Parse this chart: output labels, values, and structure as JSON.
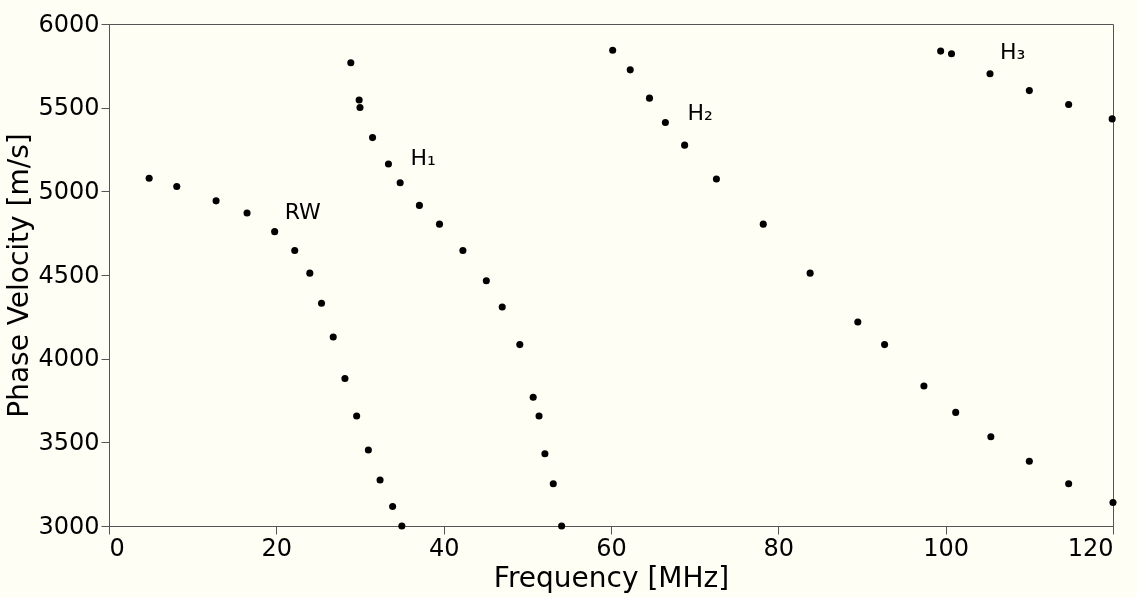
{
  "chart_data": {
    "type": "scatter",
    "xlabel": "Frequency [MHz]",
    "ylabel": "Phase Velocity [m/s]",
    "xlim": [
      0,
      120
    ],
    "ylim": [
      3000,
      6000
    ],
    "xticks": [
      0,
      20,
      40,
      60,
      80,
      100,
      120
    ],
    "yticks": [
      3000,
      3500,
      4000,
      4500,
      5000,
      5500,
      6000
    ],
    "grid": false,
    "marker": "circle",
    "series": [
      {
        "name": "RW",
        "color": "#000000",
        "x": [
          4.8,
          8.1,
          12.8,
          16.5,
          19.8,
          22.2,
          24.0,
          25.4,
          26.8,
          28.2,
          29.6,
          31.0,
          32.4,
          33.9,
          35.0
        ],
        "values": [
          5078,
          5029,
          4943,
          4871,
          4759,
          4646,
          4511,
          4331,
          4129,
          3882,
          3657,
          3454,
          3275,
          3117,
          3000
        ]
      },
      {
        "name": "H₁",
        "color": "#000000",
        "x": [
          28.9,
          29.9,
          30.0,
          31.5,
          33.4,
          34.8,
          37.1,
          39.5,
          42.3,
          45.1,
          47.0,
          49.1,
          50.7,
          51.4,
          52.1,
          53.1,
          54.1
        ],
        "values": [
          5768,
          5546,
          5501,
          5321,
          5163,
          5051,
          4916,
          4804,
          4646,
          4466,
          4309,
          4084,
          3769,
          3657,
          3432,
          3252,
          3000
        ]
      },
      {
        "name": "H₂",
        "color": "#000000",
        "x": [
          60.2,
          62.3,
          64.6,
          66.5,
          68.8,
          72.6,
          78.2,
          83.8,
          89.5,
          92.7,
          97.4,
          101.2,
          105.4,
          110.0,
          114.7,
          120.0
        ],
        "values": [
          5843,
          5726,
          5557,
          5411,
          5276,
          5074,
          4804,
          4511,
          4219,
          4084,
          3837,
          3679,
          3533,
          3387,
          3252,
          3140
        ]
      },
      {
        "name": "H₃",
        "color": "#000000",
        "x": [
          99.4,
          100.7,
          105.3,
          110.0,
          114.7,
          119.9
        ],
        "values": [
          5838,
          5822,
          5703,
          5602,
          5519,
          5433
        ]
      }
    ]
  }
}
